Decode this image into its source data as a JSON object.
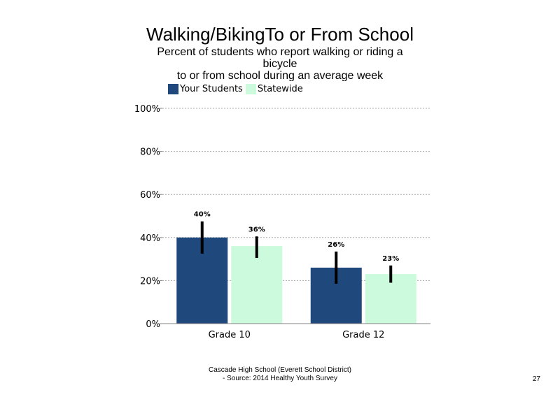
{
  "chart_data": {
    "type": "bar",
    "title": "Walking/BikingTo or From School",
    "subtitle_lines": [
      "Percent of students who report walking  or riding a",
      "bicycle",
      "to or from school during an average  week"
    ],
    "categories": [
      "Grade 10",
      "Grade 12"
    ],
    "series": [
      {
        "name": "Your Students",
        "color": "#1f497d",
        "values": [
          40,
          26
        ],
        "labels": [
          "40%",
          "26%"
        ],
        "error_low": [
          32.5,
          18.5
        ],
        "error_high": [
          47.5,
          33.5
        ]
      },
      {
        "name": "Statewide",
        "color": "#ccfadc",
        "values": [
          36,
          23
        ],
        "labels": [
          "36%",
          "23%"
        ],
        "error_low": [
          30.5,
          19
        ],
        "error_high": [
          40.5,
          27
        ]
      }
    ],
    "yticks": [
      0,
      20,
      40,
      60,
      80,
      100
    ],
    "ytick_labels": [
      "0%",
      "20%",
      "40%",
      "60%",
      "80%",
      "100%"
    ],
    "ylim": [
      0,
      100
    ],
    "grid": true,
    "legend_position": "top-left"
  },
  "footer": {
    "line1": "Cascade High School (Everett School District)",
    "line2": "- Source: 2014 Healthy  Youth Survey"
  },
  "page_number": "27"
}
